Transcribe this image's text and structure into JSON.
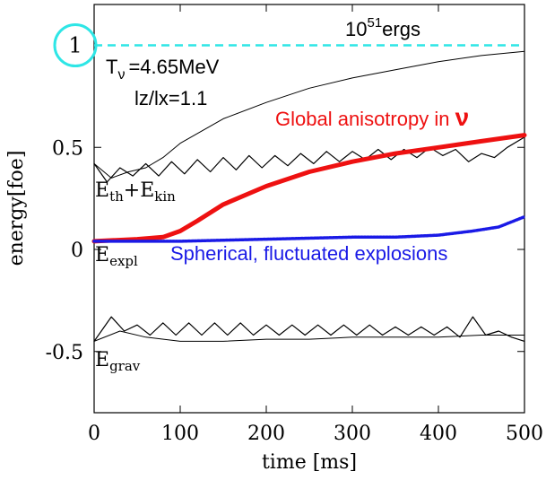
{
  "chart_data": {
    "type": "line",
    "xlabel": "time [ms]",
    "ylabel": "energy[foe]",
    "xlim": [
      0,
      500
    ],
    "ylim": [
      -0.8,
      1.2
    ],
    "x_ticks": [
      0,
      100,
      200,
      300,
      400,
      500
    ],
    "x_tick_labels": [
      "0",
      "100",
      "200",
      "300",
      "400",
      "500"
    ],
    "y_ticks": [
      0.5,
      0,
      -0.5
    ],
    "y_tick_labels": [
      "0.5",
      "0",
      "-0.5"
    ],
    "reference_line": {
      "y": 1.0,
      "label_base": "10",
      "label_exp": "51",
      "label_unit": "ergs",
      "color": "#2ee6e6",
      "marker_label": "1"
    },
    "annotations": {
      "tnu_prefix": "T",
      "tnu_sub": "ν",
      "tnu_value": "=4.65MeV",
      "aspect": "lz/lx=1.1",
      "global_text": "Global anisotropy in ",
      "global_nu": "ν",
      "global_color": "#ee1111",
      "spherical_text": "Spherical, fluctuated explosions",
      "spherical_color": "#1a1ae6"
    },
    "curve_labels": {
      "eth_a": "E",
      "eth_a_sub": "th",
      "plus": "+",
      "eth_b": "E",
      "eth_b_sub": "kin",
      "expl": "E",
      "expl_sub": "expl",
      "grav": "E",
      "grav_sub": "grav"
    },
    "series": [
      {
        "label": "E_total (upper thin)",
        "color": "#000000",
        "x": [
          0,
          20,
          40,
          60,
          80,
          100,
          150,
          200,
          250,
          300,
          350,
          400,
          450,
          500
        ],
        "y": [
          0.42,
          0.35,
          0.38,
          0.4,
          0.45,
          0.52,
          0.64,
          0.72,
          0.79,
          0.84,
          0.88,
          0.92,
          0.95,
          0.97
        ]
      },
      {
        "label": "Eth+Ekin (oscillating)",
        "color": "#000000",
        "x": [
          0,
          15,
          30,
          45,
          60,
          75,
          90,
          105,
          120,
          135,
          150,
          165,
          180,
          195,
          210,
          225,
          240,
          255,
          270,
          285,
          300,
          315,
          330,
          345,
          360,
          375,
          390,
          405,
          420,
          435,
          450,
          465,
          480,
          500
        ],
        "y": [
          0.42,
          0.33,
          0.4,
          0.36,
          0.42,
          0.36,
          0.43,
          0.37,
          0.44,
          0.38,
          0.45,
          0.39,
          0.46,
          0.4,
          0.46,
          0.41,
          0.47,
          0.42,
          0.48,
          0.43,
          0.48,
          0.44,
          0.49,
          0.44,
          0.49,
          0.45,
          0.5,
          0.46,
          0.49,
          0.43,
          0.47,
          0.45,
          0.5,
          0.55
        ]
      },
      {
        "label": "Global anisotropy in ν",
        "color": "#ee1111",
        "x": [
          0,
          50,
          80,
          100,
          120,
          150,
          200,
          250,
          300,
          350,
          400,
          450,
          500
        ],
        "y": [
          0.04,
          0.05,
          0.06,
          0.09,
          0.14,
          0.22,
          0.31,
          0.38,
          0.43,
          0.47,
          0.5,
          0.53,
          0.56
        ]
      },
      {
        "label": "Spherical, fluctuated explosions",
        "color": "#1a1ae6",
        "x": [
          0,
          100,
          200,
          300,
          350,
          400,
          440,
          470,
          500
        ],
        "y": [
          0.04,
          0.04,
          0.05,
          0.06,
          0.06,
          0.07,
          0.09,
          0.11,
          0.16
        ]
      },
      {
        "label": "Egrav (oscillating)",
        "color": "#000000",
        "x": [
          0,
          20,
          35,
          50,
          65,
          80,
          95,
          110,
          125,
          140,
          155,
          170,
          185,
          200,
          215,
          230,
          245,
          260,
          275,
          290,
          305,
          320,
          335,
          350,
          365,
          380,
          395,
          410,
          425,
          440,
          455,
          470,
          485,
          500
        ],
        "y": [
          -0.45,
          -0.33,
          -0.4,
          -0.37,
          -0.42,
          -0.36,
          -0.42,
          -0.36,
          -0.42,
          -0.36,
          -0.42,
          -0.36,
          -0.42,
          -0.37,
          -0.42,
          -0.37,
          -0.42,
          -0.37,
          -0.42,
          -0.37,
          -0.42,
          -0.37,
          -0.42,
          -0.38,
          -0.42,
          -0.38,
          -0.42,
          -0.38,
          -0.43,
          -0.33,
          -0.42,
          -0.4,
          -0.43,
          -0.45
        ]
      },
      {
        "label": "Egrav (smooth)",
        "color": "#000000",
        "x": [
          0,
          30,
          60,
          100,
          150,
          200,
          250,
          300,
          350,
          400,
          450,
          500
        ],
        "y": [
          -0.45,
          -0.4,
          -0.43,
          -0.45,
          -0.45,
          -0.44,
          -0.44,
          -0.43,
          -0.43,
          -0.43,
          -0.42,
          -0.42
        ]
      }
    ]
  }
}
